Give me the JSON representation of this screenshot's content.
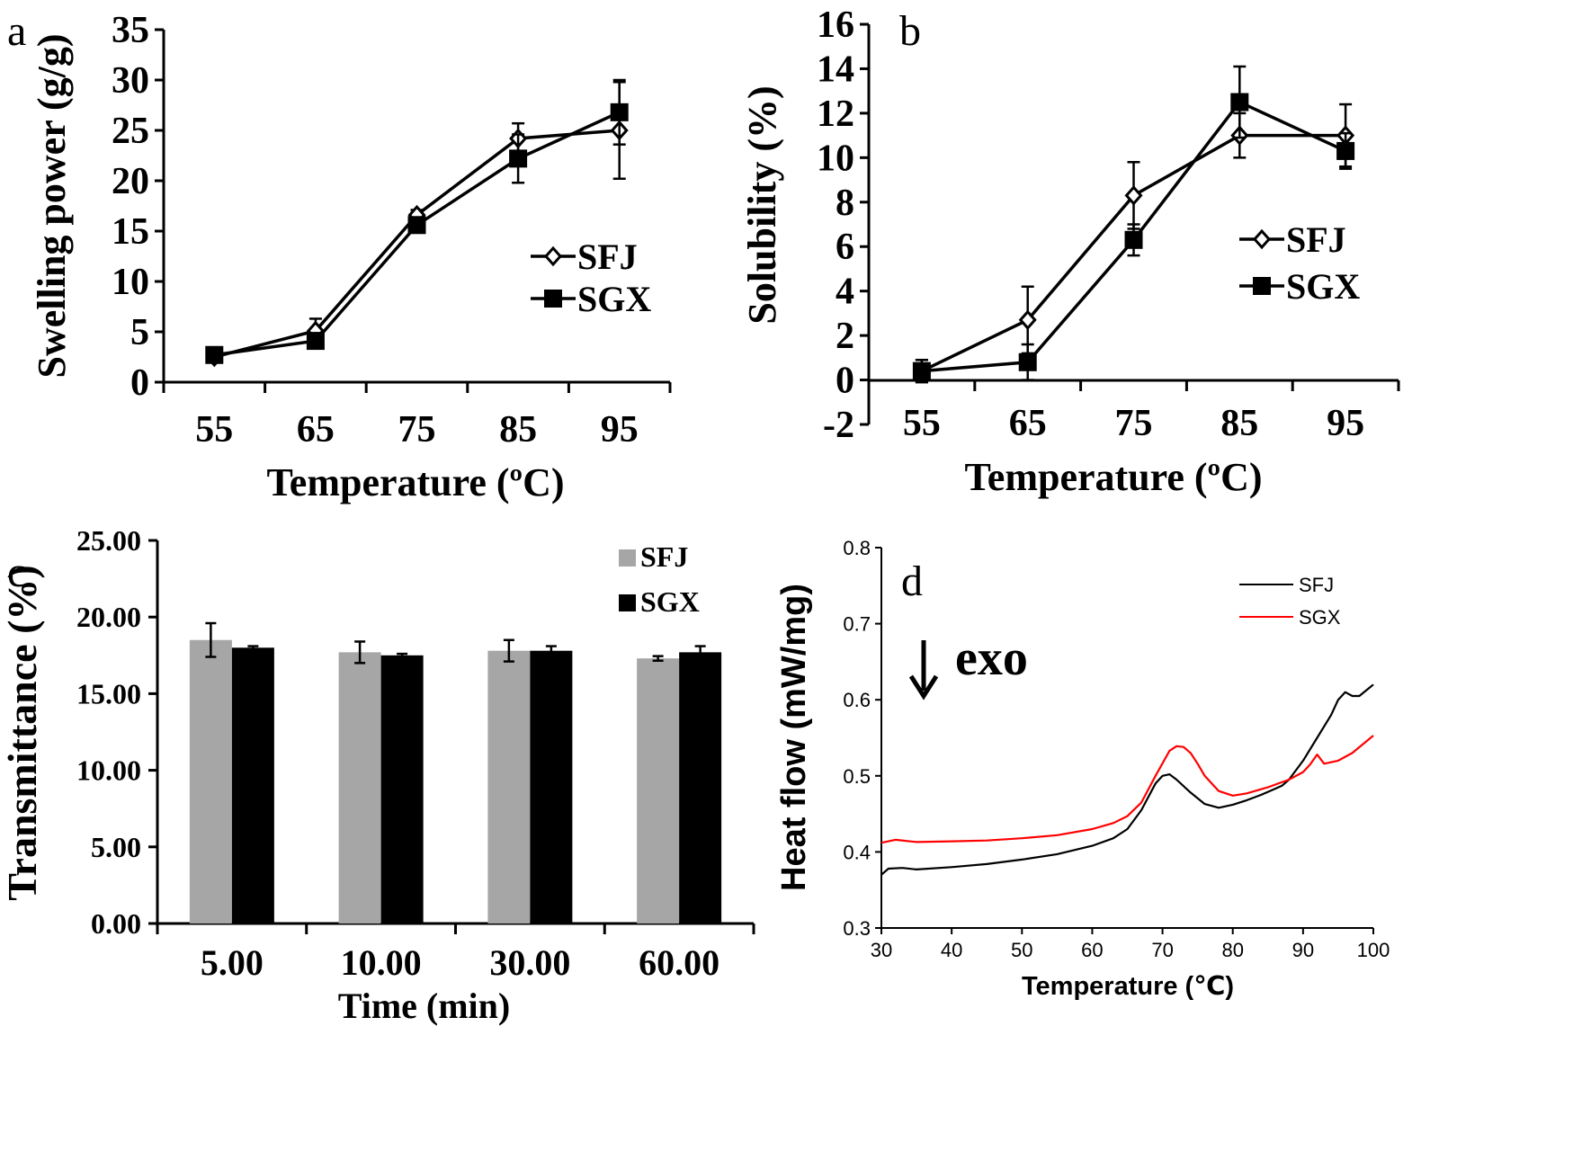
{
  "panels": [
    {
      "letter": "a",
      "chart_data": {
        "type": "line",
        "xlabel": "Temperature (ºC)",
        "ylabel": "Swelling power (g/g)",
        "x": [
          55,
          65,
          75,
          85,
          95
        ],
        "xlim": [
          50,
          100
        ],
        "ylim": [
          0,
          35
        ],
        "xticks": [
          "55",
          "65",
          "75",
          "85",
          "95"
        ],
        "yticks": [
          "0",
          "5",
          "10",
          "15",
          "20",
          "25",
          "30",
          "35"
        ],
        "series": [
          {
            "name": "SFJ",
            "marker": "diamond-open",
            "values": [
              2.5,
              5.1,
              16.6,
              24.2,
              25.0
            ],
            "errors": [
              0.3,
              1.2,
              0.5,
              1.5,
              4.8
            ]
          },
          {
            "name": "SGX",
            "marker": "square-filled",
            "values": [
              2.7,
              4.1,
              15.6,
              22.2,
              26.8
            ],
            "errors": [
              0.4,
              0.5,
              0.5,
              2.4,
              3.2
            ]
          }
        ],
        "legend": "right"
      }
    },
    {
      "letter": "b",
      "chart_data": {
        "type": "line",
        "xlabel": "Temperature (ºC)",
        "ylabel": "Solubility (%)",
        "x": [
          55,
          65,
          75,
          85,
          95
        ],
        "xlim": [
          50,
          100
        ],
        "ylim": [
          -2,
          16
        ],
        "xticks": [
          "55",
          "65",
          "75",
          "85",
          "95"
        ],
        "yticks": [
          "-2",
          "0",
          "2",
          "4",
          "6",
          "8",
          "10",
          "12",
          "14",
          "16"
        ],
        "series": [
          {
            "name": "SFJ",
            "marker": "diamond-open",
            "values": [
              0.4,
              2.7,
              8.3,
              11.0,
              11.0
            ],
            "errors": [
              0.5,
              1.5,
              1.5,
              1.0,
              1.4
            ]
          },
          {
            "name": "SGX",
            "marker": "square-filled",
            "values": [
              0.4,
              0.8,
              6.3,
              12.5,
              10.3
            ],
            "errors": [
              0.5,
              0.8,
              0.7,
              1.6,
              0.8
            ]
          }
        ],
        "legend": "right"
      }
    },
    {
      "letter": "c",
      "chart_data": {
        "type": "bar",
        "xlabel": "Time (min)",
        "ylabel": "Transmittance (%)",
        "categories": [
          "5.00",
          "10.00",
          "30.00",
          "60.00"
        ],
        "ylim": [
          0,
          25
        ],
        "yticks": [
          "0.00",
          "5.00",
          "10.00",
          "15.00",
          "20.00",
          "25.00"
        ],
        "series": [
          {
            "name": "SFJ",
            "color": "#a6a6a6",
            "values": [
              18.5,
              17.7,
              17.8,
              17.3
            ],
            "errors": [
              1.1,
              0.7,
              0.7,
              0.15
            ]
          },
          {
            "name": "SGX",
            "color": "#000000",
            "values": [
              18.0,
              17.5,
              17.8,
              17.7
            ],
            "errors": [
              0.1,
              0.1,
              0.3,
              0.4
            ]
          }
        ],
        "legend": "top-right"
      }
    },
    {
      "letter": "d",
      "annotation": "exo",
      "chart_data": {
        "type": "line",
        "xlabel": "Temperature (℃)",
        "ylabel": "Heat flow (mW/mg)",
        "xlim": [
          30,
          100
        ],
        "ylim": [
          0.3,
          0.8
        ],
        "xticks": [
          "30",
          "40",
          "50",
          "60",
          "70",
          "80",
          "90",
          "100"
        ],
        "yticks": [
          "0.3",
          "0.4",
          "0.5",
          "0.6",
          "0.7",
          "0.8"
        ],
        "series": [
          {
            "name": "SFJ",
            "color": "#000000",
            "x": [
              30,
              31,
              33,
              35,
              40,
              45,
              50,
              55,
              60,
              63,
              65,
              67,
              69,
              70,
              71,
              72,
              74,
              76,
              78,
              80,
              82,
              84,
              86,
              87,
              88,
              90,
              92,
              94,
              95,
              96,
              97,
              98,
              100
            ],
            "values": [
              0.37,
              0.378,
              0.379,
              0.377,
              0.38,
              0.384,
              0.39,
              0.397,
              0.408,
              0.418,
              0.43,
              0.455,
              0.49,
              0.5,
              0.502,
              0.495,
              0.478,
              0.463,
              0.458,
              0.462,
              0.468,
              0.475,
              0.483,
              0.487,
              0.495,
              0.52,
              0.55,
              0.58,
              0.6,
              0.61,
              0.605,
              0.605,
              0.62
            ]
          },
          {
            "name": "SGX",
            "color": "#ff0000",
            "x": [
              30,
              32,
              35,
              40,
              45,
              50,
              55,
              60,
              63,
              65,
              67,
              69,
              71,
              72,
              73,
              74,
              75,
              76,
              78,
              80,
              82,
              85,
              88,
              90,
              91,
              92,
              93,
              95,
              97,
              100
            ],
            "values": [
              0.412,
              0.416,
              0.413,
              0.414,
              0.415,
              0.418,
              0.422,
              0.43,
              0.438,
              0.447,
              0.465,
              0.5,
              0.533,
              0.539,
              0.538,
              0.53,
              0.516,
              0.5,
              0.48,
              0.474,
              0.477,
              0.485,
              0.495,
              0.505,
              0.515,
              0.528,
              0.516,
              0.52,
              0.53,
              0.553
            ]
          }
        ],
        "legend": "top-right"
      }
    }
  ]
}
